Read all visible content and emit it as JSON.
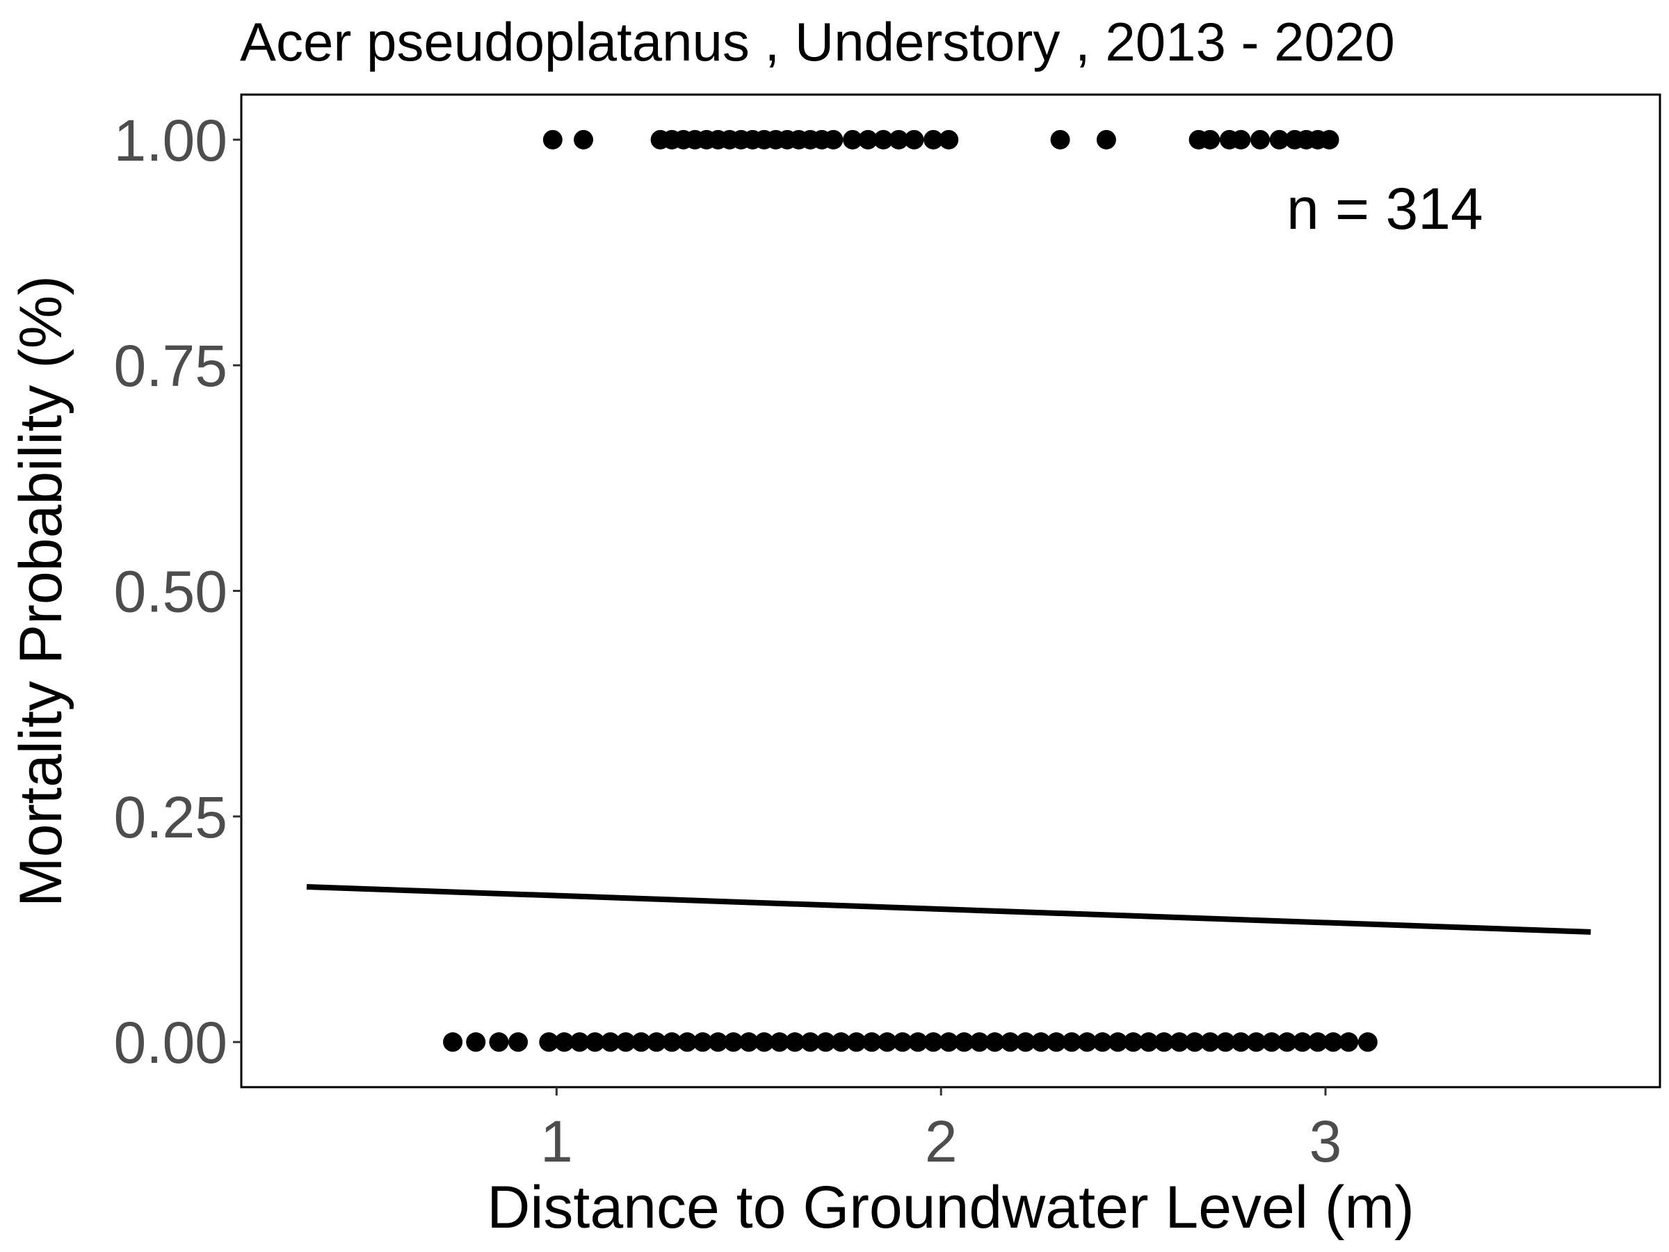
{
  "chart_data": {
    "type": "scatter",
    "title": "Acer pseudoplatanus , Understory , 2013 - 2020",
    "xlabel": "Distance to Groundwater Level (m)",
    "ylabel": "Mortality Probability (%)",
    "xlim": [
      0.18,
      3.87
    ],
    "ylim": [
      -0.05,
      1.05
    ],
    "xticks": [
      1,
      2,
      3
    ],
    "xtick_labels": [
      "1",
      "2",
      "3"
    ],
    "yticks": [
      0,
      0.25,
      0.5,
      0.75,
      1
    ],
    "ytick_labels": [
      "0.00",
      "0.25",
      "0.50",
      "0.75",
      "1.00"
    ],
    "grid": false,
    "annotation": "n =  314",
    "series": [
      {
        "type": "scatter",
        "y": 1,
        "x": [
          0.99,
          1.07,
          1.27,
          1.3,
          1.33,
          1.36,
          1.39,
          1.42,
          1.45,
          1.48,
          1.51,
          1.54,
          1.57,
          1.6,
          1.63,
          1.66,
          1.69,
          1.72,
          1.77,
          1.81,
          1.85,
          1.89,
          1.93,
          1.98,
          2.02,
          2.31,
          2.43,
          2.67,
          2.7,
          2.75,
          2.78,
          2.83,
          2.88,
          2.92,
          2.95,
          2.98,
          3.01
        ]
      },
      {
        "type": "scatter",
        "y": 0,
        "x": [
          0.73,
          0.79,
          0.85,
          0.9,
          0.98,
          1.02,
          1.06,
          1.1,
          1.14,
          1.18,
          1.22,
          1.26,
          1.3,
          1.34,
          1.38,
          1.42,
          1.46,
          1.5,
          1.54,
          1.58,
          1.62,
          1.66,
          1.7,
          1.74,
          1.78,
          1.82,
          1.86,
          1.9,
          1.94,
          1.98,
          2.02,
          2.06,
          2.1,
          2.14,
          2.18,
          2.22,
          2.26,
          2.3,
          2.34,
          2.38,
          2.42,
          2.46,
          2.5,
          2.54,
          2.58,
          2.62,
          2.66,
          2.7,
          2.74,
          2.78,
          2.82,
          2.86,
          2.9,
          2.94,
          2.98,
          3.02,
          3.06,
          3.11
        ]
      },
      {
        "type": "line",
        "x": [
          0.35,
          3.69
        ],
        "y": [
          0.172,
          0.122
        ]
      }
    ]
  }
}
